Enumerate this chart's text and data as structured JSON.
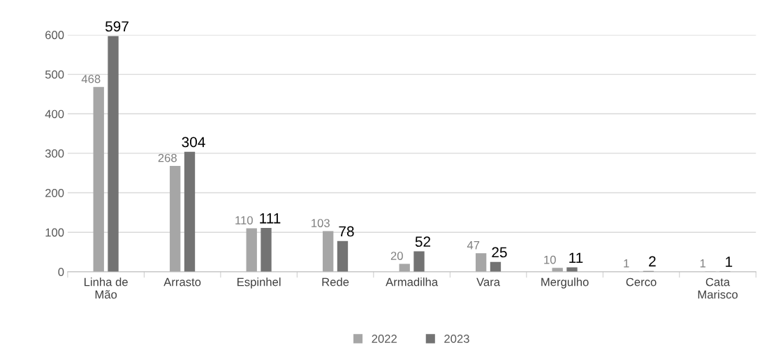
{
  "chart_data": {
    "type": "bar",
    "categories": [
      "Linha de Mão",
      "Arrasto",
      "Espinhel",
      "Rede",
      "Armadilha",
      "Vara",
      "Mergulho",
      "Cerco",
      "Cata Marisco"
    ],
    "series": [
      {
        "name": "2022",
        "color": "#a6a6a6",
        "values": [
          468,
          268,
          110,
          103,
          20,
          47,
          10,
          1,
          1
        ]
      },
      {
        "name": "2023",
        "color": "#737373",
        "values": [
          597,
          304,
          111,
          78,
          52,
          25,
          11,
          2,
          1
        ]
      }
    ],
    "ylim": [
      0,
      600
    ],
    "yticks": [
      0,
      100,
      200,
      300,
      400,
      500,
      600
    ],
    "grid": "y",
    "legend": "bottom",
    "data_labels": true
  }
}
